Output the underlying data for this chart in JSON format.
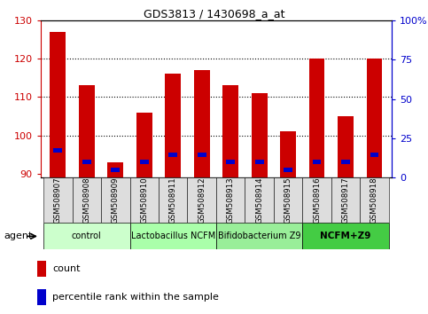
{
  "title": "GDS3813 / 1430698_a_at",
  "categories": [
    "GSM508907",
    "GSM508908",
    "GSM508909",
    "GSM508910",
    "GSM508911",
    "GSM508912",
    "GSM508913",
    "GSM508914",
    "GSM508915",
    "GSM508916",
    "GSM508917",
    "GSM508918"
  ],
  "count_values": [
    127,
    113,
    93,
    106,
    116,
    117,
    113,
    111,
    101,
    120,
    105,
    120
  ],
  "percentile_values": [
    96,
    93,
    91,
    93,
    95,
    95,
    93,
    93,
    91,
    93,
    93,
    95
  ],
  "bar_bottom": 89,
  "y_min": 89,
  "y_max": 130,
  "y_ticks": [
    90,
    100,
    110,
    120,
    130
  ],
  "right_y_ticks": [
    0,
    25,
    50,
    75,
    100
  ],
  "right_y_tick_labels": [
    "0",
    "25",
    "50",
    "75",
    "100%"
  ],
  "bar_color": "#cc0000",
  "percentile_color": "#0000cc",
  "groups": [
    {
      "label": "control",
      "indices": [
        0,
        1,
        2
      ],
      "color": "#ccffcc"
    },
    {
      "label": "Lactobacillus NCFM",
      "indices": [
        3,
        4,
        5
      ],
      "color": "#aaffaa"
    },
    {
      "label": "Bifidobacterium Z9",
      "indices": [
        6,
        7,
        8
      ],
      "color": "#99ee99"
    },
    {
      "label": "NCFM+Z9",
      "indices": [
        9,
        10,
        11
      ],
      "color": "#44cc44"
    }
  ],
  "agent_label": "agent",
  "legend_count_label": "count",
  "legend_percentile_label": "percentile rank within the sample",
  "bar_width": 0.55,
  "tick_color_left": "#cc0000",
  "tick_color_right": "#0000cc",
  "label_box_color": "#dddddd",
  "group3_fontsize": 9,
  "group3_fontweight": "bold"
}
